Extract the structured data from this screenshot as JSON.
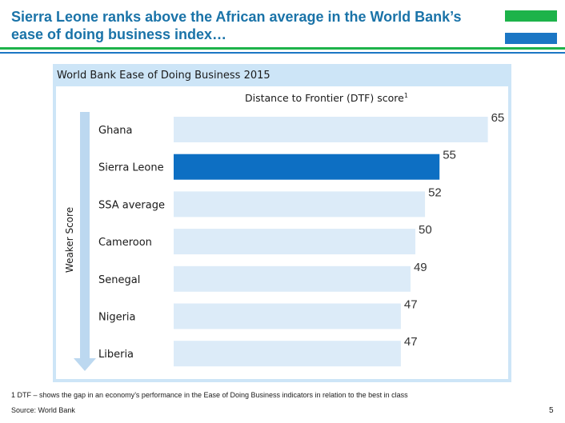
{
  "header": {
    "title": "Sierra Leone ranks above the African average in the World Bank’s ease of doing business index…",
    "flag_colors": [
      "#1db34a",
      "#ffffff",
      "#1b76c4"
    ]
  },
  "chart_data": {
    "type": "bar",
    "orientation": "horizontal",
    "title": "World Bank Ease of Doing Business 2015",
    "subtitle": "Distance to Frontier (DTF) score",
    "subtitle_sup": "1",
    "ylabel": "Weaker Score",
    "categories": [
      "Ghana",
      "Sierra Leone",
      "SSA average",
      "Cameroon",
      "Senegal",
      "Nigeria",
      "Liberia"
    ],
    "values": [
      65,
      55,
      52,
      50,
      49,
      47,
      47
    ],
    "value_labels": [
      "65",
      "55",
      "52",
      "50",
      "49",
      "47",
      "47"
    ],
    "highlight": "Sierra Leone",
    "colors": {
      "bar": "#dcebf8",
      "highlight": "#0d6fc3"
    },
    "grid": false
  },
  "footer": {
    "footnote": "1 DTF – shows the gap in an economy’s performance in the Ease of Doing Business indicators in relation to the best in class",
    "source": "Source: World Bank",
    "page_number": "5"
  }
}
